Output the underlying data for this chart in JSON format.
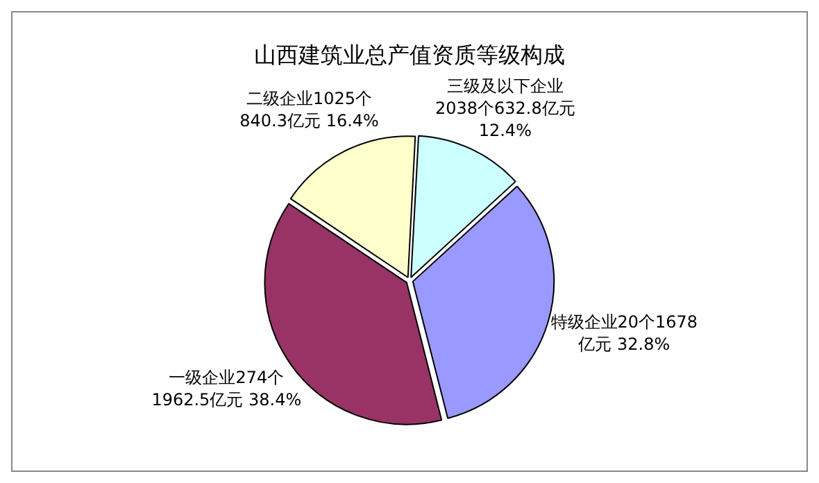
{
  "chart_data": {
    "type": "pie",
    "title": "山西建筑业总产值资质等级构成",
    "categories": [
      "三级及以下企业\n2038个632.8亿元\n12.4%",
      "特级企业20个1678\n亿元 32.8%",
      "一级企业274个\n1962.5亿元 38.4%",
      "二级企业1025个\n840.3亿元 16.4%"
    ],
    "values": [
      632.8,
      1678,
      1962.5,
      840.3
    ],
    "colors": [
      "#ccffff",
      "#9999ff",
      "#993366",
      "#ffffcc"
    ],
    "legend": false
  }
}
